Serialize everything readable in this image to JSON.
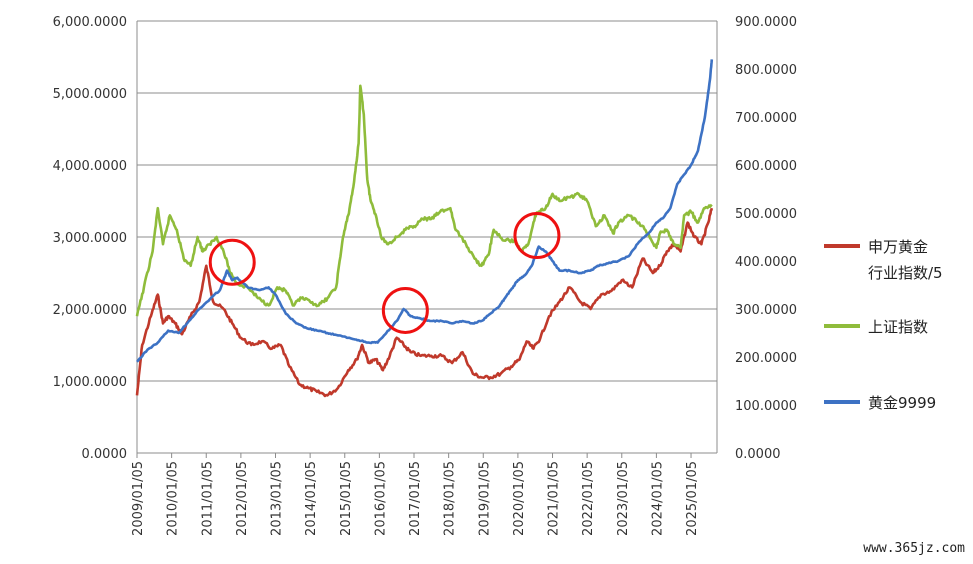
{
  "chart_data": {
    "type": "line",
    "left_axis": {
      "ylim": [
        0,
        6000
      ],
      "ticks": [
        "0.0000",
        "1,000.0000",
        "2,000.0000",
        "3,000.0000",
        "4,000.0000",
        "5,000.0000",
        "6,000.0000"
      ]
    },
    "right_axis": {
      "ylim": [
        0,
        900
      ],
      "ticks": [
        "0.0000",
        "100.0000",
        "200.0000",
        "300.0000",
        "400.0000",
        "500.0000",
        "600.0000",
        "700.0000",
        "800.0000",
        "900.0000"
      ]
    },
    "x_range": [
      2009.0,
      2025.75
    ],
    "x_ticks": [
      "2009/01/05",
      "2010/01/05",
      "2011/01/05",
      "2012/01/05",
      "2013/01/05",
      "2014/01/05",
      "2015/01/05",
      "2016/01/05",
      "2017/01/05",
      "2018/01/05",
      "2019/01/05",
      "2020/01/05",
      "2021/01/05",
      "2022/01/05",
      "2023/01/05",
      "2024/01/05",
      "2025/01/05"
    ],
    "grid": "horizontal",
    "legend_position": "right",
    "series": [
      {
        "name": "申万黄金行业指数/5",
        "legend_lines": [
          "申万黄金",
          "行业指数/5"
        ],
        "axis": "left",
        "color": "#c0392b",
        "x": [
          2009.0,
          2009.15,
          2009.4,
          2009.6,
          2009.75,
          2009.9,
          2010.1,
          2010.3,
          2010.55,
          2010.8,
          2011.0,
          2011.2,
          2011.5,
          2011.75,
          2012.0,
          2012.3,
          2012.6,
          2012.9,
          2013.15,
          2013.4,
          2013.7,
          2013.95,
          2014.2,
          2014.5,
          2014.8,
          2015.1,
          2015.35,
          2015.5,
          2015.7,
          2015.9,
          2016.1,
          2016.3,
          2016.5,
          2016.7,
          2016.9,
          2017.2,
          2017.5,
          2017.8,
          2018.1,
          2018.4,
          2018.7,
          2018.95,
          2019.2,
          2019.5,
          2019.8,
          2020.05,
          2020.25,
          2020.45,
          2020.65,
          2020.9,
          2021.2,
          2021.5,
          2021.8,
          2022.1,
          2022.4,
          2022.7,
          2023.0,
          2023.3,
          2023.6,
          2023.9,
          2024.1,
          2024.3,
          2024.5,
          2024.7,
          2024.9,
          2025.1,
          2025.3,
          2025.5,
          2025.6
        ],
        "values": [
          800,
          1500,
          1900,
          2200,
          1800,
          1900,
          1800,
          1650,
          1900,
          2100,
          2600,
          2100,
          2000,
          1800,
          1600,
          1500,
          1550,
          1450,
          1500,
          1200,
          950,
          900,
          850,
          800,
          900,
          1150,
          1300,
          1500,
          1250,
          1300,
          1150,
          1350,
          1600,
          1500,
          1400,
          1350,
          1350,
          1350,
          1250,
          1400,
          1100,
          1050,
          1050,
          1100,
          1200,
          1300,
          1550,
          1450,
          1600,
          1900,
          2100,
          2300,
          2100,
          2000,
          2200,
          2250,
          2400,
          2300,
          2700,
          2500,
          2600,
          2800,
          2900,
          2800,
          3200,
          3000,
          2900,
          3200,
          3400
        ]
      },
      {
        "name": "上证指数",
        "legend_lines": [
          "上证指数"
        ],
        "axis": "left",
        "color": "#8fbc3b",
        "x": [
          2009.0,
          2009.2,
          2009.45,
          2009.6,
          2009.75,
          2009.95,
          2010.15,
          2010.35,
          2010.55,
          2010.75,
          2010.9,
          2011.1,
          2011.3,
          2011.5,
          2011.7,
          2011.9,
          2012.2,
          2012.5,
          2012.8,
          2013.05,
          2013.3,
          2013.5,
          2013.75,
          2014.0,
          2014.25,
          2014.5,
          2014.75,
          2014.95,
          2015.1,
          2015.25,
          2015.4,
          2015.45,
          2015.55,
          2015.65,
          2015.75,
          2015.9,
          2016.05,
          2016.25,
          2016.5,
          2016.75,
          2017.0,
          2017.25,
          2017.5,
          2017.75,
          2018.05,
          2018.2,
          2018.5,
          2018.75,
          2018.95,
          2019.15,
          2019.3,
          2019.6,
          2019.9,
          2020.1,
          2020.3,
          2020.5,
          2020.6,
          2020.8,
          2021.0,
          2021.2,
          2021.5,
          2021.75,
          2022.0,
          2022.25,
          2022.5,
          2022.75,
          2022.9,
          2023.2,
          2023.5,
          2023.75,
          2024.0,
          2024.1,
          2024.3,
          2024.5,
          2024.7,
          2024.8,
          2025.0,
          2025.2,
          2025.4,
          2025.6
        ],
        "values": [
          1900,
          2300,
          2800,
          3400,
          2900,
          3300,
          3100,
          2700,
          2600,
          3000,
          2800,
          2900,
          3000,
          2800,
          2500,
          2350,
          2300,
          2150,
          2050,
          2300,
          2250,
          2050,
          2150,
          2100,
          2050,
          2150,
          2300,
          3000,
          3300,
          3700,
          4300,
          5100,
          4700,
          3800,
          3500,
          3300,
          3000,
          2900,
          3000,
          3100,
          3150,
          3250,
          3250,
          3350,
          3400,
          3100,
          2900,
          2700,
          2600,
          2750,
          3100,
          2950,
          2950,
          2800,
          2900,
          3300,
          3350,
          3400,
          3600,
          3500,
          3550,
          3600,
          3500,
          3150,
          3300,
          3050,
          3200,
          3300,
          3200,
          3050,
          2850,
          3050,
          3100,
          2900,
          2850,
          3300,
          3350,
          3200,
          3400,
          3450
        ]
      },
      {
        "name": "黄金9999",
        "legend_lines": [
          "黄金9999"
        ],
        "axis": "right",
        "color": "#3d72c4",
        "x": [
          2009.0,
          2009.3,
          2009.6,
          2009.9,
          2010.2,
          2010.5,
          2010.8,
          2011.1,
          2011.4,
          2011.6,
          2011.75,
          2011.9,
          2012.2,
          2012.5,
          2012.8,
          2013.0,
          2013.3,
          2013.6,
          2013.9,
          2014.2,
          2014.5,
          2014.8,
          2015.1,
          2015.4,
          2015.7,
          2015.95,
          2016.2,
          2016.5,
          2016.7,
          2016.9,
          2017.2,
          2017.5,
          2017.8,
          2018.1,
          2018.4,
          2018.7,
          2018.95,
          2019.2,
          2019.45,
          2019.6,
          2019.8,
          2020.0,
          2020.2,
          2020.4,
          2020.6,
          2020.8,
          2021.0,
          2021.2,
          2021.5,
          2021.8,
          2022.1,
          2022.3,
          2022.6,
          2022.9,
          2023.2,
          2023.5,
          2023.8,
          2024.0,
          2024.2,
          2024.4,
          2024.6,
          2024.8,
          2025.0,
          2025.2,
          2025.4,
          2025.55,
          2025.6
        ],
        "values": [
          190,
          215,
          230,
          255,
          250,
          275,
          300,
          320,
          340,
          380,
          360,
          365,
          345,
          340,
          345,
          330,
          290,
          270,
          260,
          255,
          250,
          245,
          240,
          235,
          230,
          230,
          250,
          275,
          300,
          285,
          280,
          275,
          275,
          270,
          275,
          270,
          275,
          290,
          305,
          320,
          340,
          360,
          370,
          390,
          430,
          420,
          400,
          380,
          380,
          375,
          380,
          390,
          395,
          400,
          410,
          440,
          460,
          480,
          490,
          510,
          560,
          580,
          600,
          630,
          700,
          780,
          820
        ]
      }
    ],
    "annotations": [
      {
        "shape": "circle",
        "x": 2011.75,
        "y_left": 2650
      },
      {
        "shape": "circle",
        "x": 2016.75,
        "y_left": 1980
      },
      {
        "shape": "circle",
        "x": 2020.55,
        "y_left": 3020
      }
    ]
  },
  "watermark": "www.365jz.com"
}
